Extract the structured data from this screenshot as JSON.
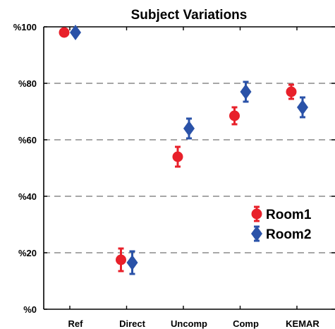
{
  "chart_data": {
    "type": "scatter",
    "title": "Subject Variations",
    "xlabel": "",
    "ylabel": "",
    "categories": [
      "Ref",
      "Direct",
      "Uncomp",
      "Comp",
      "KEMAR"
    ],
    "yticks": [
      "%0",
      "%20",
      "%40",
      "%60",
      "%80",
      "%100"
    ],
    "ylim": [
      0,
      100
    ],
    "grid": "horizontal-dashed",
    "legend": "right",
    "series": [
      {
        "name": "Room1",
        "marker": "circle",
        "color": "#e8202a",
        "values": [
          98,
          17.5,
          54,
          68.5,
          77
        ],
        "err_low": [
          0,
          4,
          3.5,
          3,
          2.5
        ],
        "err_high": [
          0,
          4,
          3.5,
          3,
          2.5
        ]
      },
      {
        "name": "Room2",
        "marker": "diamond",
        "color": "#2a52a8",
        "values": [
          98,
          16.5,
          64,
          77,
          71.5
        ],
        "err_low": [
          0,
          4,
          3.5,
          3.5,
          3.5
        ],
        "err_high": [
          0,
          4,
          3.5,
          3.5,
          3.5
        ]
      }
    ]
  }
}
